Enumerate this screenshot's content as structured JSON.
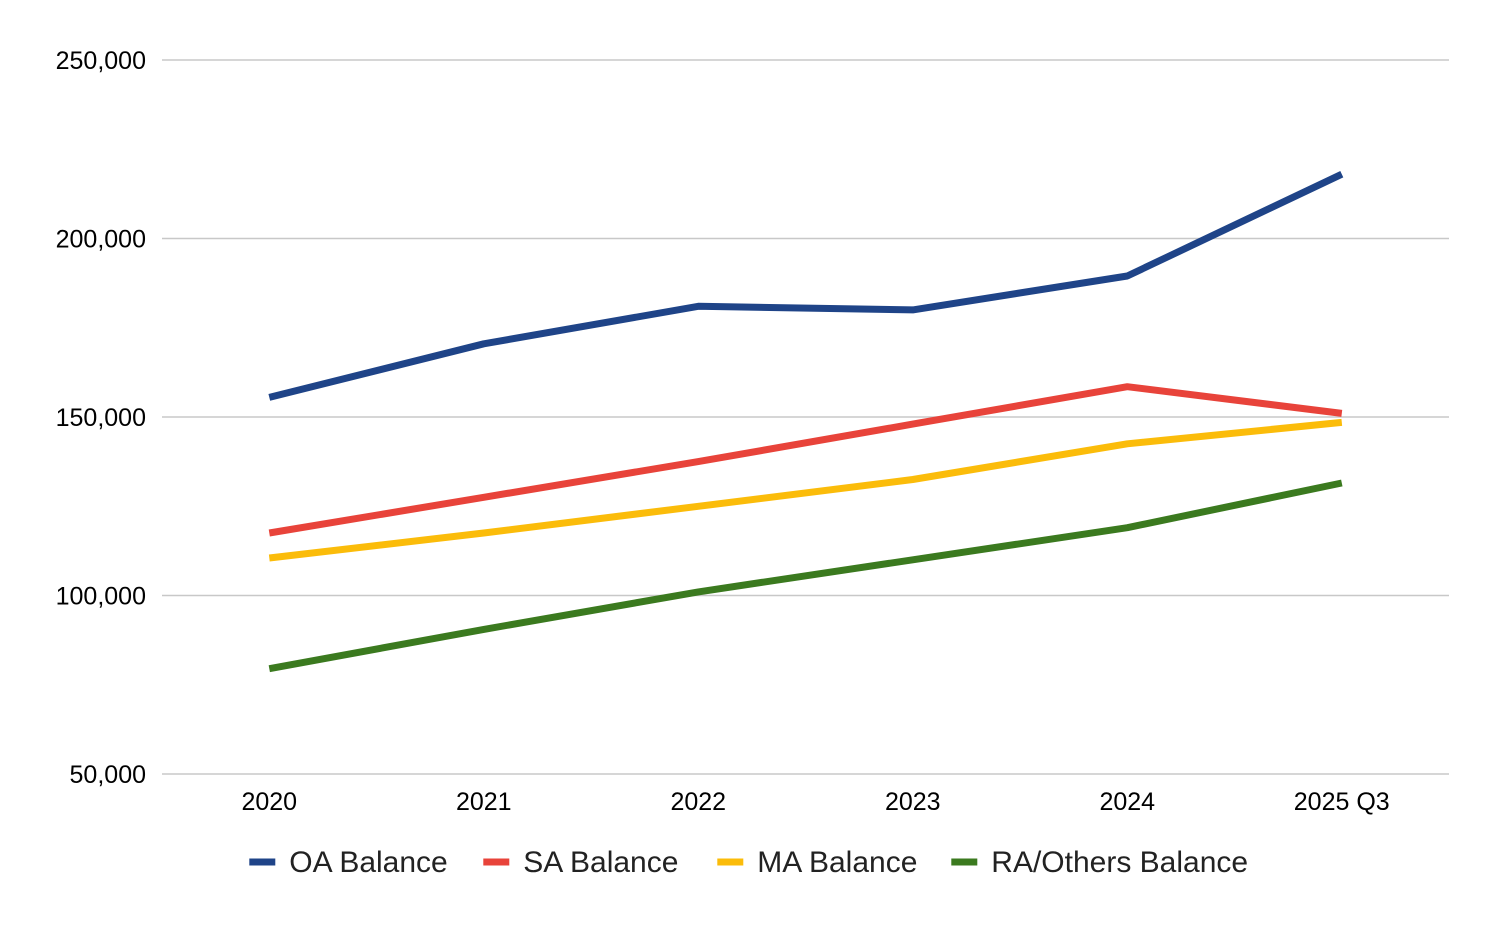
{
  "chart_data": {
    "type": "line",
    "title": "",
    "xlabel": "",
    "ylabel": "",
    "categories": [
      "2020",
      "2021",
      "2022",
      "2023",
      "2024",
      "2025 Q3"
    ],
    "ylim": [
      50000,
      250000
    ],
    "yticks": [
      50000,
      100000,
      150000,
      200000,
      250000
    ],
    "ytick_labels": [
      "50,000",
      "100,000",
      "150,000",
      "200,000",
      "250,000"
    ],
    "grid": true,
    "legend_position": "bottom",
    "series": [
      {
        "name": "OA Balance",
        "color": "#1f4488",
        "values": [
          155500,
          170500,
          181000,
          180000,
          189500,
          218000
        ]
      },
      {
        "name": "SA Balance",
        "color": "#e8433a",
        "values": [
          117500,
          127500,
          137500,
          148000,
          158500,
          151000
        ]
      },
      {
        "name": "MA Balance",
        "color": "#fbbc0a",
        "values": [
          110500,
          117500,
          125000,
          132500,
          142500,
          148500
        ]
      },
      {
        "name": "RA/Others Balance",
        "color": "#3b7a1f",
        "values": [
          79500,
          90500,
          101000,
          110000,
          119000,
          131500
        ]
      }
    ]
  }
}
